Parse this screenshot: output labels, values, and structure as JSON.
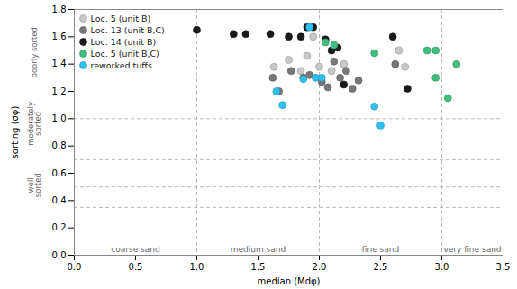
{
  "chart_data": {
    "type": "scatter",
    "xlabel": "median (Mdφ)",
    "ylabel": "sorting (σφ)",
    "xlim": [
      0,
      3.5
    ],
    "ylim": [
      0,
      1.8
    ],
    "xticks": [
      {
        "value": 0,
        "label": "0.0"
      },
      0.5,
      {
        "value": 1,
        "label": "1.0"
      },
      1.5,
      {
        "value": 2,
        "label": "2.0"
      },
      2.5,
      {
        "value": 3,
        "label": "3.0"
      },
      3.5
    ],
    "yticks": [
      {
        "value": 0,
        "label": "0.0"
      },
      0.2,
      0.4,
      0.6,
      0.8,
      {
        "value": 1,
        "label": "1.0"
      },
      1.2,
      1.4,
      1.6,
      1.8
    ],
    "hlines": [
      0.35,
      0.5,
      0.7,
      1.0
    ],
    "vlines": [
      1.0,
      2.0,
      3.0
    ],
    "annotations": [
      {
        "text": "coarse sand",
        "x": 0.5,
        "y": 0.025
      },
      {
        "text": "medium sand",
        "x": 1.5,
        "y": 0.025
      },
      {
        "text": "fine sand",
        "x": 2.5,
        "y": 0.025
      },
      {
        "text": "very fine sand",
        "x": 3.25,
        "y": 0.025
      },
      {
        "text": "poorly sorted",
        "y": 1.485
      },
      {
        "text": "moderately\nsorted",
        "y": 0.963
      },
      {
        "text": "well\nsorted",
        "y": 0.513
      }
    ],
    "grid": false,
    "legend": "upper left",
    "marker": "circle",
    "series": [
      {
        "name": "Loc. 5 (unit B)",
        "color": "#c8c8c8",
        "values": [
          [
            1.63,
            1.38
          ],
          [
            1.75,
            1.43
          ],
          [
            1.85,
            1.35
          ],
          [
            1.9,
            1.46
          ],
          [
            1.95,
            1.6
          ],
          [
            2.0,
            1.38
          ],
          [
            2.1,
            1.35
          ],
          [
            2.2,
            1.4
          ],
          [
            2.65,
            1.5
          ],
          [
            2.7,
            1.38
          ]
        ]
      },
      {
        "name": "Loc. 13 (unit B,C)",
        "color": "#787878",
        "values": [
          [
            1.62,
            1.3
          ],
          [
            1.67,
            1.2
          ],
          [
            1.77,
            1.35
          ],
          [
            1.87,
            1.3
          ],
          [
            1.92,
            1.32
          ],
          [
            2.02,
            1.27
          ],
          [
            2.07,
            1.23
          ],
          [
            2.12,
            1.42
          ],
          [
            2.17,
            1.3
          ],
          [
            2.22,
            1.35
          ],
          [
            2.27,
            1.22
          ],
          [
            2.32,
            1.28
          ],
          [
            2.62,
            1.4
          ]
        ]
      },
      {
        "name": "Loc. 14 (unit B)",
        "color": "#1a1a1a",
        "values": [
          [
            1.0,
            1.65
          ],
          [
            1.3,
            1.62
          ],
          [
            1.4,
            1.62
          ],
          [
            1.6,
            1.62
          ],
          [
            1.75,
            1.6
          ],
          [
            1.85,
            1.6
          ],
          [
            1.9,
            1.67
          ],
          [
            1.95,
            1.67
          ],
          [
            2.05,
            1.58
          ],
          [
            2.1,
            1.5
          ],
          [
            2.15,
            1.52
          ],
          [
            2.2,
            1.25
          ],
          [
            2.6,
            1.6
          ],
          [
            2.72,
            1.22
          ]
        ]
      },
      {
        "name": "Loc. 5 (unit B,C)",
        "color": "#40bf80",
        "values": [
          [
            2.05,
            1.56
          ],
          [
            2.12,
            1.54
          ],
          [
            2.45,
            1.48
          ],
          [
            2.88,
            1.5
          ],
          [
            2.95,
            1.5
          ],
          [
            2.95,
            1.3
          ],
          [
            3.05,
            1.15
          ],
          [
            3.12,
            1.4
          ]
        ]
      },
      {
        "name": "reworked tuffs",
        "color": "#30c0f0",
        "values": [
          [
            1.65,
            1.2
          ],
          [
            1.7,
            1.1
          ],
          [
            1.87,
            1.29
          ],
          [
            1.92,
            1.67
          ],
          [
            1.97,
            1.3
          ],
          [
            2.02,
            1.3
          ],
          [
            2.45,
            1.09
          ],
          [
            2.5,
            0.95
          ]
        ]
      }
    ]
  }
}
